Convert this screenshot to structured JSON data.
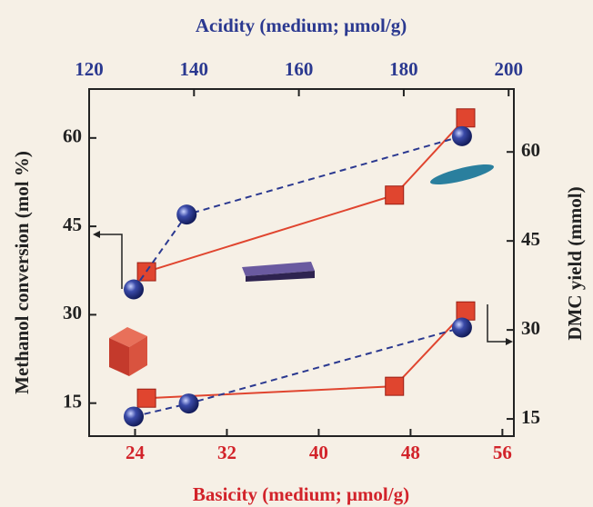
{
  "chart_data": {
    "type": "line",
    "x_label": "Basicity (medium; μmol/g)",
    "x2_label": "Acidity (medium; μmol/g)",
    "y_label": "Methanol conversion (mol %)",
    "y2_label": "DMC yield (mmol)",
    "xlim": [
      20,
      57
    ],
    "xticks": [
      24,
      32,
      40,
      48,
      56
    ],
    "x2lim": [
      120,
      201
    ],
    "x2ticks": [
      120,
      140,
      160,
      180,
      200
    ],
    "ylim": [
      9.4,
      68.3
    ],
    "yticks": [
      15,
      30,
      45,
      60
    ],
    "y2lim": [
      12.1,
      70.6
    ],
    "y2ticks": [
      15,
      30,
      45,
      60
    ],
    "series": [
      {
        "color": "#e0452f",
        "marker": "square",
        "dashed": false,
        "xaxis": "x",
        "axis": "y",
        "x": [
          25,
          46.6,
          52.8
        ],
        "values": [
          37.3,
          50.3,
          63.4
        ]
      },
      {
        "color": "#2b3990",
        "marker": "circle",
        "dashed": true,
        "xaxis": "x2",
        "axis": "y",
        "x": [
          128.5,
          138.6,
          191.1
        ],
        "values": [
          34.3,
          47.0,
          60.3
        ]
      },
      {
        "color": "#e0452f",
        "marker": "square",
        "dashed": false,
        "xaxis": "x",
        "axis": "y2",
        "x": [
          25,
          46.6,
          52.8
        ],
        "values": [
          18.5,
          20.5,
          33.2
        ]
      },
      {
        "color": "#2b3990",
        "marker": "circle",
        "dashed": true,
        "xaxis": "x2",
        "axis": "y2",
        "x": [
          128.5,
          139,
          191.1
        ],
        "values": [
          15.4,
          17.6,
          30.4
        ]
      }
    ]
  }
}
